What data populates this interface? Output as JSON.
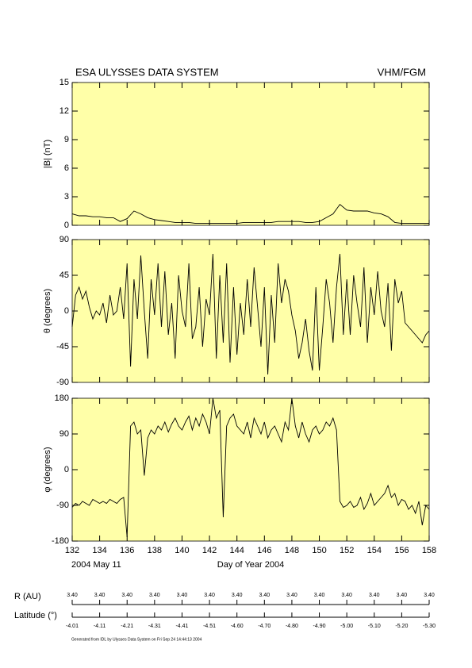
{
  "header": {
    "title": "ESA ULYSSES DATA SYSTEM",
    "instrument": "VHM/FGM"
  },
  "chart_data": [
    {
      "type": "line",
      "ylabel": "|B| (nT)",
      "color": "#000000",
      "background": "#ffffa8",
      "xlim": [
        132,
        158
      ],
      "ylim": [
        0,
        15
      ],
      "yticks": [
        0,
        3,
        6,
        9,
        12,
        15
      ],
      "x": [
        132,
        132.5,
        133,
        133.5,
        134,
        134.5,
        135,
        135.5,
        136,
        136.5,
        137,
        137.5,
        138,
        138.5,
        139,
        139.5,
        140,
        140.5,
        141,
        141.5,
        142,
        142.5,
        143,
        143.5,
        144,
        144.5,
        145,
        145.5,
        146,
        146.5,
        147,
        147.5,
        148,
        148.5,
        149,
        149.5,
        150,
        150.5,
        151,
        151.5,
        152,
        152.5,
        153,
        153.5,
        154,
        154.5,
        155,
        155.5,
        156,
        156.5,
        157,
        157.5,
        158
      ],
      "values": [
        1.2,
        1.0,
        1.0,
        0.9,
        0.9,
        0.8,
        0.8,
        0.4,
        0.7,
        1.5,
        1.2,
        0.8,
        0.6,
        0.5,
        0.4,
        0.3,
        0.3,
        0.3,
        0.2,
        0.2,
        0.2,
        0.2,
        0.2,
        0.2,
        0.2,
        0.3,
        0.3,
        0.3,
        0.3,
        0.3,
        0.4,
        0.4,
        0.4,
        0.4,
        0.3,
        0.3,
        0.4,
        0.8,
        1.2,
        2.2,
        1.6,
        1.5,
        1.5,
        1.5,
        1.3,
        1.2,
        0.9,
        0.3,
        0.2,
        0.2,
        0.2,
        0.2,
        0.2
      ]
    },
    {
      "type": "line",
      "ylabel": "θ (degrees)",
      "color": "#000000",
      "background": "#ffffa8",
      "xlim": [
        132,
        158
      ],
      "ylim": [
        -90,
        90
      ],
      "yticks": [
        -90,
        -45,
        0,
        45,
        90
      ],
      "x": [
        132,
        132.25,
        132.5,
        132.75,
        133,
        133.25,
        133.5,
        133.75,
        134,
        134.25,
        134.5,
        134.75,
        135,
        135.25,
        135.5,
        135.75,
        136,
        136.25,
        136.5,
        136.75,
        137,
        137.25,
        137.5,
        137.75,
        138,
        138.25,
        138.5,
        138.75,
        139,
        139.25,
        139.5,
        139.75,
        140,
        140.25,
        140.5,
        140.75,
        141,
        141.25,
        141.5,
        141.75,
        142,
        142.25,
        142.5,
        142.75,
        143,
        143.25,
        143.5,
        143.75,
        144,
        144.25,
        144.5,
        144.75,
        145,
        145.25,
        145.5,
        145.75,
        146,
        146.25,
        146.5,
        146.75,
        147,
        147.25,
        147.5,
        147.75,
        148,
        148.25,
        148.5,
        148.75,
        149,
        149.25,
        149.5,
        149.75,
        150,
        150.25,
        150.5,
        150.75,
        151,
        151.25,
        151.5,
        151.75,
        152,
        152.25,
        152.5,
        152.75,
        153,
        153.25,
        153.5,
        153.75,
        154,
        154.25,
        154.5,
        154.75,
        155,
        155.25,
        155.5,
        155.75,
        156,
        156.25,
        156.5,
        156.75,
        157,
        157.25,
        157.5,
        157.75,
        158
      ],
      "values": [
        -20,
        20,
        30,
        15,
        25,
        5,
        -10,
        0,
        -5,
        10,
        -15,
        20,
        -5,
        0,
        30,
        -10,
        60,
        -70,
        40,
        -10,
        70,
        0,
        -60,
        40,
        -5,
        60,
        -20,
        50,
        -30,
        10,
        -60,
        45,
        0,
        -20,
        60,
        -35,
        -20,
        30,
        -45,
        15,
        -5,
        72,
        -60,
        45,
        -40,
        60,
        -65,
        30,
        -55,
        10,
        -30,
        40,
        -20,
        55,
        5,
        -45,
        30,
        -80,
        20,
        -40,
        60,
        10,
        40,
        25,
        -5,
        -25,
        -60,
        -40,
        -10,
        -50,
        -75,
        30,
        -75,
        -20,
        40,
        10,
        -40,
        30,
        72,
        -30,
        40,
        -30,
        45,
        10,
        -20,
        55,
        -40,
        30,
        -5,
        50,
        0,
        -20,
        35,
        -50,
        40,
        10,
        25,
        -15,
        -20,
        -25,
        -30,
        -35,
        -40,
        -30,
        -25
      ]
    },
    {
      "type": "line",
      "ylabel": "φ (degrees)",
      "xlabel": "Day of Year 2004",
      "date_label": "2004 May 11",
      "color": "#000000",
      "background": "#ffffa8",
      "xlim": [
        132,
        158
      ],
      "xticks": [
        132,
        134,
        136,
        138,
        140,
        142,
        144,
        146,
        148,
        150,
        152,
        154,
        156,
        158
      ],
      "ylim": [
        -180,
        180
      ],
      "yticks": [
        -180,
        -90,
        0,
        90,
        180
      ],
      "x": [
        132,
        132.25,
        132.5,
        132.75,
        133,
        133.25,
        133.5,
        133.75,
        134,
        134.25,
        134.5,
        134.75,
        135,
        135.25,
        135.5,
        135.75,
        136,
        136.25,
        136.5,
        136.75,
        137,
        137.25,
        137.5,
        137.75,
        138,
        138.25,
        138.5,
        138.75,
        139,
        139.25,
        139.5,
        139.75,
        140,
        140.25,
        140.5,
        140.75,
        141,
        141.25,
        141.5,
        141.75,
        142,
        142.25,
        142.5,
        142.75,
        143,
        143.25,
        143.5,
        143.75,
        144,
        144.25,
        144.5,
        144.75,
        145,
        145.25,
        145.5,
        145.75,
        146,
        146.25,
        146.5,
        146.75,
        147,
        147.25,
        147.5,
        147.75,
        148,
        148.25,
        148.5,
        148.75,
        149,
        149.25,
        149.5,
        149.75,
        150,
        150.25,
        150.5,
        150.75,
        151,
        151.25,
        151.5,
        151.75,
        152,
        152.25,
        152.5,
        152.75,
        153,
        153.25,
        153.5,
        153.75,
        154,
        154.25,
        154.5,
        154.75,
        155,
        155.25,
        155.5,
        155.75,
        156,
        156.25,
        156.5,
        156.75,
        157,
        157.25,
        157.5,
        157.75,
        158
      ],
      "values": [
        -95,
        -85,
        -90,
        -80,
        -85,
        -90,
        -75,
        -80,
        -85,
        -80,
        -85,
        -75,
        -80,
        -85,
        -75,
        -70,
        -170,
        110,
        120,
        90,
        100,
        -15,
        80,
        100,
        90,
        110,
        100,
        120,
        95,
        115,
        130,
        110,
        100,
        120,
        135,
        100,
        130,
        110,
        140,
        120,
        90,
        180,
        130,
        150,
        -120,
        110,
        130,
        140,
        110,
        100,
        90,
        120,
        80,
        130,
        110,
        90,
        120,
        80,
        100,
        110,
        90,
        70,
        120,
        100,
        180,
        110,
        80,
        120,
        90,
        70,
        100,
        110,
        90,
        100,
        120,
        110,
        130,
        100,
        -80,
        -95,
        -90,
        -80,
        -95,
        -90,
        -70,
        -100,
        -85,
        -60,
        -90,
        -80,
        -70,
        -60,
        -40,
        -70,
        -60,
        -90,
        -75,
        -80,
        -100,
        -90,
        -110,
        -80,
        -140,
        -90,
        -100
      ]
    }
  ],
  "ephemeris": {
    "r_label": "R (AU)",
    "r_values": [
      "3.40",
      "3.40",
      "3.40",
      "3.40",
      "3.40",
      "3.40",
      "3.40",
      "3.40",
      "3.40",
      "3.40",
      "3.40",
      "3.40",
      "3.40",
      "3.40"
    ],
    "lat_label": "Latitude (°)",
    "lat_values": [
      "-4.01",
      "-4.11",
      "-4.21",
      "-4.31",
      "-4.41",
      "-4.51",
      "-4.60",
      "-4.70",
      "-4.80",
      "-4.90",
      "-5.00",
      "-5.10",
      "-5.20",
      "-5.30"
    ]
  },
  "footer": "Generated from IDL by Ulysses Data System on Fri Sep 24 14:44:13 2004"
}
